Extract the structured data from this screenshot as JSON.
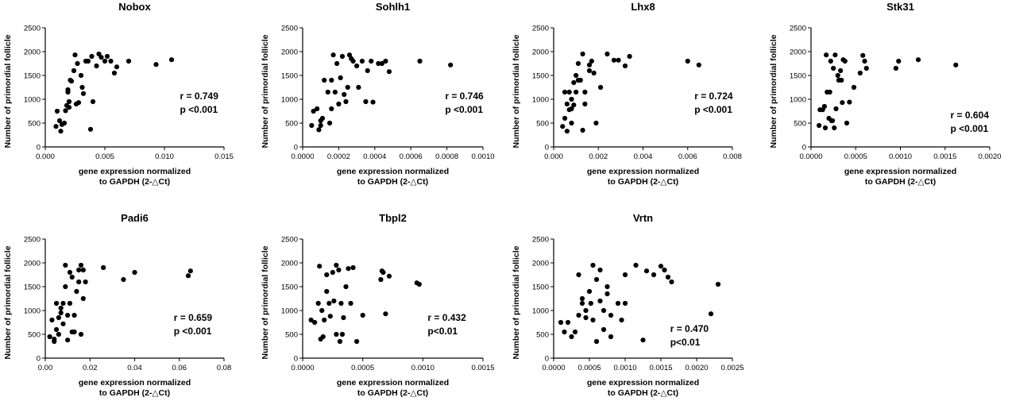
{
  "chart_data": [
    {
      "type": "scatter",
      "title": "Nobox",
      "xlabel": [
        "gene expression normalized",
        "to GAPDH (2-△Ct)"
      ],
      "ylabel": "Number of primordial follicle",
      "xlim": [
        0,
        0.015
      ],
      "ylim": [
        0,
        2500
      ],
      "xticks": [
        "0.000",
        "0.005",
        "0.010",
        "0.015"
      ],
      "yticks": [
        "0",
        "500",
        "1000",
        "1500",
        "2000",
        "2500"
      ],
      "stats": {
        "r": "r = 0.749",
        "p": "p <0.001"
      },
      "points": [
        [
          0.0009,
          430
        ],
        [
          0.001,
          750
        ],
        [
          0.0012,
          550
        ],
        [
          0.0013,
          330
        ],
        [
          0.0014,
          470
        ],
        [
          0.0016,
          500
        ],
        [
          0.0017,
          760
        ],
        [
          0.0018,
          870
        ],
        [
          0.0019,
          1150
        ],
        [
          0.0019,
          1200
        ],
        [
          0.002,
          950
        ],
        [
          0.002,
          830
        ],
        [
          0.0021,
          1400
        ],
        [
          0.0022,
          1380
        ],
        [
          0.0024,
          1600
        ],
        [
          0.0025,
          1930
        ],
        [
          0.0026,
          900
        ],
        [
          0.0027,
          1750
        ],
        [
          0.0028,
          930
        ],
        [
          0.003,
          1500
        ],
        [
          0.0031,
          1250
        ],
        [
          0.0032,
          1120
        ],
        [
          0.0034,
          1800
        ],
        [
          0.0036,
          1800
        ],
        [
          0.0038,
          370
        ],
        [
          0.0039,
          1900
        ],
        [
          0.004,
          950
        ],
        [
          0.0043,
          1700
        ],
        [
          0.0045,
          1950
        ],
        [
          0.0047,
          1880
        ],
        [
          0.005,
          1800
        ],
        [
          0.0052,
          1900
        ],
        [
          0.0055,
          1800
        ],
        [
          0.0058,
          1550
        ],
        [
          0.006,
          1680
        ],
        [
          0.007,
          1800
        ],
        [
          0.0093,
          1730
        ],
        [
          0.0106,
          1830
        ]
      ]
    },
    {
      "type": "scatter",
      "title": "Sohlh1",
      "xlabel": [
        "gene expression normalized",
        "to GAPDH (2-△Ct)"
      ],
      "ylabel": "Number of primordial follicle",
      "xlim": [
        0,
        0.001
      ],
      "ylim": [
        0,
        2500
      ],
      "xticks": [
        "0.0000",
        "0.0002",
        "0.0004",
        "0.0006",
        "0.0008",
        "0.0010"
      ],
      "yticks": [
        "0",
        "500",
        "1000",
        "1500",
        "2000",
        "2500"
      ],
      "stats": {
        "r": "r = 0.746",
        "p": "p <0.001"
      },
      "points": [
        [
          5e-05,
          450
        ],
        [
          6e-05,
          750
        ],
        [
          8e-05,
          800
        ],
        [
          9e-05,
          360
        ],
        [
          0.0001,
          450
        ],
        [
          0.0001,
          550
        ],
        [
          0.00011,
          600
        ],
        [
          0.00012,
          1400
        ],
        [
          0.00014,
          1150
        ],
        [
          0.00015,
          500
        ],
        [
          0.00016,
          800
        ],
        [
          0.00016,
          1400
        ],
        [
          0.00017,
          1930
        ],
        [
          0.00018,
          1150
        ],
        [
          0.00019,
          1750
        ],
        [
          0.0002,
          900
        ],
        [
          0.00021,
          1450
        ],
        [
          0.00022,
          1900
        ],
        [
          0.00023,
          1100
        ],
        [
          0.00024,
          950
        ],
        [
          0.00025,
          1250
        ],
        [
          0.00026,
          1930
        ],
        [
          0.00027,
          1850
        ],
        [
          0.00028,
          1800
        ],
        [
          0.0003,
          1700
        ],
        [
          0.00031,
          1250
        ],
        [
          0.00033,
          1800
        ],
        [
          0.00035,
          950
        ],
        [
          0.00036,
          1600
        ],
        [
          0.00038,
          1800
        ],
        [
          0.00039,
          940
        ],
        [
          0.00042,
          1750
        ],
        [
          0.00044,
          1750
        ],
        [
          0.00046,
          1800
        ],
        [
          0.00048,
          1580
        ],
        [
          0.00065,
          1800
        ],
        [
          0.00082,
          1720
        ]
      ]
    },
    {
      "type": "scatter",
      "title": "Lhx8",
      "xlabel": [
        "gene expression normalized",
        "to GAPDH (2-△Ct)"
      ],
      "ylabel": "Number of primordial follicle",
      "xlim": [
        0,
        0.008
      ],
      "ylim": [
        0,
        2500
      ],
      "xticks": [
        "0.000",
        "0.002",
        "0.004",
        "0.006",
        "0.008"
      ],
      "yticks": [
        "0",
        "500",
        "1000",
        "1500",
        "2000",
        "2500"
      ],
      "stats": {
        "r": "r = 0.724",
        "p": "p <0.001"
      },
      "points": [
        [
          0.0004,
          430
        ],
        [
          0.0005,
          600
        ],
        [
          0.0005,
          1150
        ],
        [
          0.0006,
          900
        ],
        [
          0.0006,
          330
        ],
        [
          0.0007,
          1150
        ],
        [
          0.0007,
          780
        ],
        [
          0.0008,
          1000
        ],
        [
          0.0008,
          800
        ],
        [
          0.0008,
          500
        ],
        [
          0.0009,
          1350
        ],
        [
          0.0009,
          880
        ],
        [
          0.001,
          1500
        ],
        [
          0.001,
          1150
        ],
        [
          0.0011,
          1400
        ],
        [
          0.0011,
          1750
        ],
        [
          0.0012,
          1400
        ],
        [
          0.0013,
          1950
        ],
        [
          0.0013,
          350
        ],
        [
          0.0014,
          1150
        ],
        [
          0.0014,
          900
        ],
        [
          0.0016,
          1720
        ],
        [
          0.0016,
          1600
        ],
        [
          0.0017,
          1800
        ],
        [
          0.0018,
          1550
        ],
        [
          0.0019,
          500
        ],
        [
          0.0021,
          1250
        ],
        [
          0.0024,
          1950
        ],
        [
          0.0027,
          1820
        ],
        [
          0.0029,
          1820
        ],
        [
          0.0032,
          1700
        ],
        [
          0.0034,
          1900
        ],
        [
          0.006,
          1800
        ],
        [
          0.0065,
          1720
        ]
      ]
    },
    {
      "type": "scatter",
      "title": "Stk31",
      "xlabel": [
        "gene expression normalized",
        "to GAPDH (2-△Ct)"
      ],
      "ylabel": "Number of primordial follicle",
      "xlim": [
        0,
        0.002
      ],
      "ylim": [
        0,
        2500
      ],
      "xticks": [
        "0.0000",
        "0.0005",
        "0.0010",
        "0.0015",
        "0.0020"
      ],
      "yticks": [
        "0",
        "500",
        "1000",
        "1500",
        "2000",
        "2500"
      ],
      "stats": {
        "r": "r = 0.604",
        "p": "p <0.001"
      },
      "points": [
        [
          9e-05,
          450
        ],
        [
          0.0001,
          780
        ],
        [
          0.00013,
          780
        ],
        [
          0.00015,
          850
        ],
        [
          0.00016,
          400
        ],
        [
          0.00017,
          1930
        ],
        [
          0.00018,
          1150
        ],
        [
          0.0002,
          600
        ],
        [
          0.00021,
          1150
        ],
        [
          0.00022,
          1800
        ],
        [
          0.00023,
          550
        ],
        [
          0.00024,
          550
        ],
        [
          0.00025,
          1650
        ],
        [
          0.00026,
          400
        ],
        [
          0.00027,
          1930
        ],
        [
          0.00028,
          800
        ],
        [
          0.0003,
          1500
        ],
        [
          0.00031,
          1400
        ],
        [
          0.00033,
          1600
        ],
        [
          0.00034,
          1400
        ],
        [
          0.00035,
          930
        ],
        [
          0.00036,
          1830
        ],
        [
          0.00038,
          1800
        ],
        [
          0.0004,
          500
        ],
        [
          0.00043,
          940
        ],
        [
          0.00048,
          1250
        ],
        [
          0.00055,
          1550
        ],
        [
          0.00058,
          1920
        ],
        [
          0.0006,
          1800
        ],
        [
          0.00062,
          1650
        ],
        [
          0.00095,
          1650
        ],
        [
          0.00098,
          1800
        ],
        [
          0.0012,
          1830
        ],
        [
          0.00162,
          1720
        ]
      ]
    },
    {
      "type": "scatter",
      "title": "Padi6",
      "xlabel": [
        "gene expression normalized",
        "to GAPDH (2-△Ct)"
      ],
      "ylabel": "Number of primordial follicle",
      "xlim": [
        0,
        0.08
      ],
      "ylim": [
        0,
        2500
      ],
      "xticks": [
        "0.00",
        "0.02",
        "0.04",
        "0.06",
        "0.08"
      ],
      "yticks": [
        "0",
        "500",
        "1000",
        "1500",
        "2000",
        "2500"
      ],
      "stats": {
        "r": "r = 0.659",
        "p": "p <0.001"
      },
      "points": [
        [
          0.002,
          450
        ],
        [
          0.003,
          800
        ],
        [
          0.004,
          400
        ],
        [
          0.004,
          350
        ],
        [
          0.005,
          1150
        ],
        [
          0.005,
          600
        ],
        [
          0.006,
          850
        ],
        [
          0.006,
          500
        ],
        [
          0.007,
          950
        ],
        [
          0.007,
          1050
        ],
        [
          0.008,
          720
        ],
        [
          0.008,
          1150
        ],
        [
          0.009,
          1500
        ],
        [
          0.009,
          1950
        ],
        [
          0.01,
          900
        ],
        [
          0.01,
          380
        ],
        [
          0.011,
          1800
        ],
        [
          0.011,
          1150
        ],
        [
          0.012,
          1700
        ],
        [
          0.012,
          550
        ],
        [
          0.013,
          550
        ],
        [
          0.013,
          900
        ],
        [
          0.014,
          1400
        ],
        [
          0.015,
          1600
        ],
        [
          0.015,
          1850
        ],
        [
          0.016,
          1950
        ],
        [
          0.016,
          500
        ],
        [
          0.017,
          1850
        ],
        [
          0.017,
          1250
        ],
        [
          0.018,
          1600
        ],
        [
          0.026,
          1900
        ],
        [
          0.035,
          1650
        ],
        [
          0.04,
          1800
        ],
        [
          0.064,
          1730
        ],
        [
          0.065,
          1830
        ]
      ]
    },
    {
      "type": "scatter",
      "title": "Tbpl2",
      "xlabel": [
        "gene expression normalized",
        "to GAPDH (2-△Ct)"
      ],
      "ylabel": "Number of primordial follicle",
      "xlim": [
        0,
        0.0015
      ],
      "ylim": [
        0,
        2500
      ],
      "xticks": [
        "0.0000",
        "0.0005",
        "0.0010",
        "0.0015"
      ],
      "yticks": [
        "0",
        "500",
        "1000",
        "1500",
        "2000",
        "2500"
      ],
      "stats": {
        "r": "r = 0.432",
        "p": "p<0.01"
      },
      "points": [
        [
          7e-05,
          800
        ],
        [
          0.0001,
          750
        ],
        [
          0.00013,
          1150
        ],
        [
          0.00014,
          1930
        ],
        [
          0.00015,
          400
        ],
        [
          0.00016,
          1000
        ],
        [
          0.00017,
          450
        ],
        [
          0.00018,
          800
        ],
        [
          0.0002,
          1750
        ],
        [
          0.0002,
          1400
        ],
        [
          0.00022,
          1150
        ],
        [
          0.00023,
          880
        ],
        [
          0.00025,
          1800
        ],
        [
          0.00026,
          1200
        ],
        [
          0.00028,
          1950
        ],
        [
          0.00028,
          500
        ],
        [
          0.0003,
          1850
        ],
        [
          0.00031,
          350
        ],
        [
          0.00032,
          1150
        ],
        [
          0.00033,
          500
        ],
        [
          0.00034,
          850
        ],
        [
          0.00036,
          1500
        ],
        [
          0.00038,
          1880
        ],
        [
          0.0004,
          1150
        ],
        [
          0.00042,
          1900
        ],
        [
          0.00045,
          350
        ],
        [
          0.0005,
          900
        ],
        [
          0.00065,
          1650
        ],
        [
          0.00066,
          1830
        ],
        [
          0.00067,
          1800
        ],
        [
          0.00069,
          930
        ],
        [
          0.00072,
          1720
        ],
        [
          0.00095,
          1580
        ],
        [
          0.00097,
          1550
        ]
      ]
    },
    {
      "type": "scatter",
      "title": "Vrtn",
      "xlabel": [
        "gene expression normalized",
        "to GAPDH (2-△Ct)"
      ],
      "ylabel": "Number of primordial follicle",
      "xlim": [
        0,
        0.0025
      ],
      "ylim": [
        0,
        2500
      ],
      "xticks": [
        "0.0000",
        "0.0005",
        "0.0010",
        "0.0015",
        "0.0020",
        "0.0025"
      ],
      "yticks": [
        "0",
        "500",
        "1000",
        "1500",
        "2000",
        "2500"
      ],
      "stats": {
        "r": "r = 0.470",
        "p": "p<0.01"
      },
      "points": [
        [
          0.0001,
          750
        ],
        [
          0.00015,
          550
        ],
        [
          0.0002,
          750
        ],
        [
          0.00025,
          450
        ],
        [
          0.0003,
          550
        ],
        [
          0.00035,
          900
        ],
        [
          0.00035,
          1750
        ],
        [
          0.0004,
          1150
        ],
        [
          0.0004,
          1250
        ],
        [
          0.00045,
          850
        ],
        [
          0.00045,
          1000
        ],
        [
          0.0005,
          1400
        ],
        [
          0.00052,
          1150
        ],
        [
          0.00055,
          800
        ],
        [
          0.00055,
          1950
        ],
        [
          0.0006,
          350
        ],
        [
          0.0006,
          1650
        ],
        [
          0.00065,
          1850
        ],
        [
          0.00065,
          1200
        ],
        [
          0.0007,
          600
        ],
        [
          0.0007,
          1000
        ],
        [
          0.00075,
          1500
        ],
        [
          0.00075,
          1350
        ],
        [
          0.0008,
          450
        ],
        [
          0.0008,
          900
        ],
        [
          0.0009,
          1150
        ],
        [
          0.00095,
          800
        ],
        [
          0.001,
          1750
        ],
        [
          0.001,
          1150
        ],
        [
          0.00115,
          1950
        ],
        [
          0.00125,
          380
        ],
        [
          0.0013,
          1830
        ],
        [
          0.0014,
          1750
        ],
        [
          0.0015,
          1930
        ],
        [
          0.00155,
          1850
        ],
        [
          0.0016,
          1700
        ],
        [
          0.00165,
          1600
        ],
        [
          0.0022,
          930
        ],
        [
          0.0023,
          1550
        ]
      ]
    }
  ]
}
